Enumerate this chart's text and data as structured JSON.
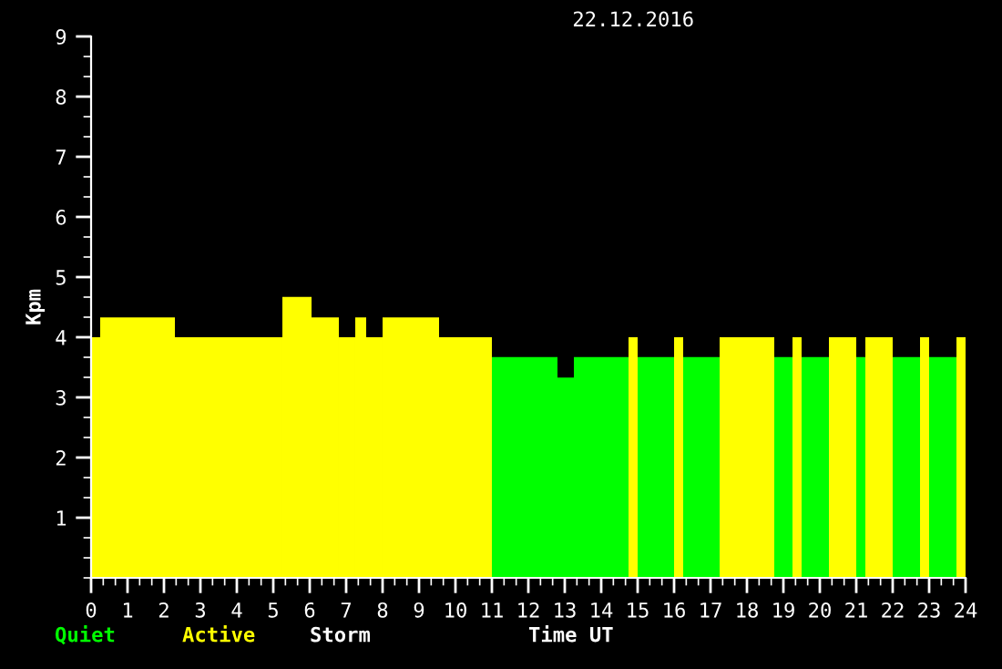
{
  "chart_data": {
    "type": "histogram",
    "title": "22.12.2016",
    "xlabel": "Time UT",
    "ylabel": "Kpm",
    "bins": [
      0,
      0.25,
      2.3,
      5.25,
      6.05,
      6.8,
      7.25,
      7.55,
      8,
      9.55,
      11,
      12.8,
      13.25,
      14.75,
      15,
      16,
      16.25,
      17.25,
      18.75,
      19.25,
      19.5,
      20.25,
      21,
      21.25,
      22,
      22.75,
      23,
      23.75,
      24
    ],
    "series": [
      {
        "name": "Quiet",
        "color": "#00ff00",
        "values": [
          null,
          null,
          null,
          null,
          null,
          null,
          null,
          null,
          null,
          null,
          3.67,
          3.33,
          3.67,
          null,
          3.67,
          null,
          3.67,
          null,
          3.67,
          null,
          3.67,
          null,
          3.67,
          null,
          3.67,
          null,
          3.67,
          null
        ]
      },
      {
        "name": "Active",
        "color": "#ffff00",
        "values": [
          4,
          4.33,
          4,
          4.67,
          4.33,
          4,
          4.33,
          4,
          4.33,
          4,
          null,
          null,
          null,
          4,
          null,
          4,
          null,
          4,
          null,
          4,
          null,
          4,
          null,
          4,
          null,
          4,
          null,
          4
        ]
      }
    ],
    "annotations": [
      "Storm"
    ],
    "xlim": [
      0,
      24
    ],
    "ylim": [
      0,
      9
    ],
    "xticks": [
      0,
      1,
      2,
      3,
      4,
      5,
      6,
      7,
      8,
      9,
      10,
      11,
      12,
      13,
      14,
      15,
      16,
      17,
      18,
      19,
      20,
      21,
      22,
      23,
      24
    ],
    "yticks": [
      1,
      2,
      3,
      4,
      5,
      6,
      7,
      8,
      9
    ],
    "legend": "bottom",
    "grid": false
  }
}
